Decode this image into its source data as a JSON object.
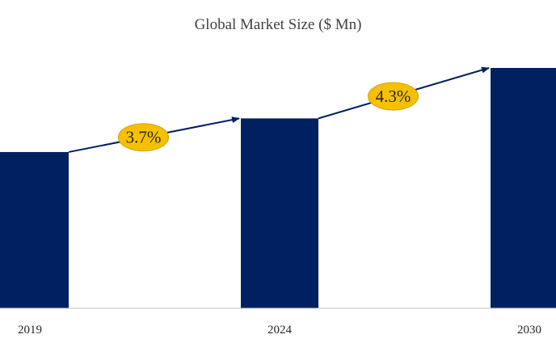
{
  "chart_data": {
    "type": "bar",
    "title": "Global Market Size ($ Mn)",
    "categories": [
      "2019",
      "2024",
      "2030"
    ],
    "values": [
      65,
      79,
      100
    ],
    "xlabel": "",
    "ylabel": "",
    "ylim": [
      0,
      100
    ],
    "grid": false,
    "legend": "none",
    "annotations": [
      {
        "label": "3.7%",
        "from": "2019",
        "to": "2024"
      },
      {
        "label": "4.3%",
        "from": "2024",
        "to": "2030"
      }
    ],
    "colors": {
      "bar": "#002060",
      "arrow": "#002060",
      "badge_fill": "#f5c000",
      "badge_stroke": "#d4a300",
      "axis": "#bfbfbf"
    }
  }
}
